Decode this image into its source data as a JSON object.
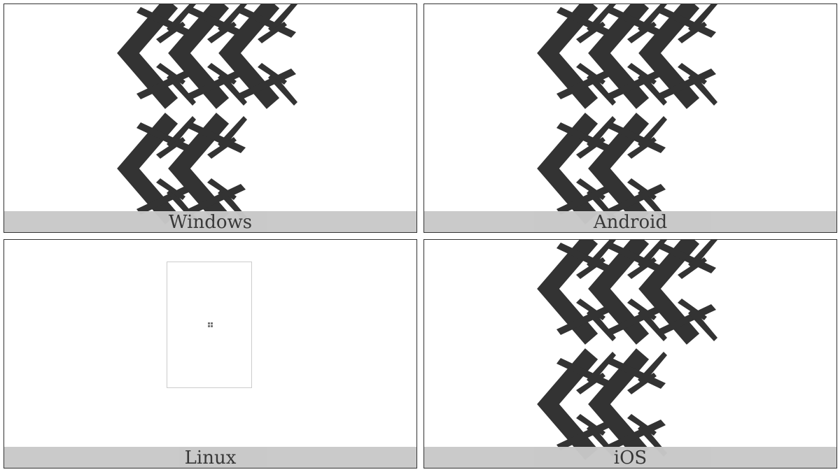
{
  "panels": [
    {
      "platform": "Windows",
      "rendering": "glyph"
    },
    {
      "platform": "Android",
      "rendering": "glyph"
    },
    {
      "platform": "Linux",
      "rendering": "missing-glyph-box"
    },
    {
      "platform": "iOS",
      "rendering": "glyph"
    }
  ],
  "colors": {
    "glyph": "#333333",
    "label_bar": "#c8c8c8",
    "border": "#333333"
  }
}
